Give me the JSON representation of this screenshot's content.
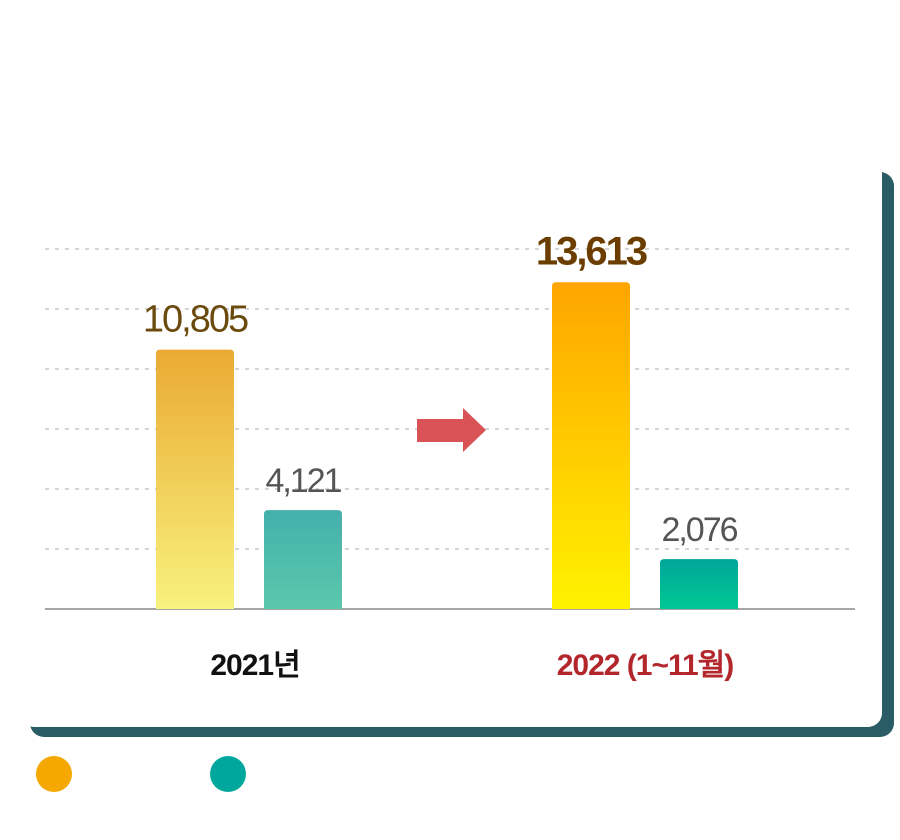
{
  "chart_data": {
    "type": "bar",
    "categories": [
      "2021년",
      "2022 (1~11월)"
    ],
    "series": [
      {
        "color": "#F5A800",
        "values": [
          10805,
          13613
        ]
      },
      {
        "color": "#00A79D",
        "values": [
          4121,
          2076
        ]
      }
    ],
    "value_labels": [
      [
        "10,805",
        "13,613"
      ],
      [
        "4,121",
        "2,076"
      ]
    ],
    "ylim": [
      0,
      15000
    ],
    "grid": true,
    "legend": "bottom-left"
  },
  "colors": {
    "category_2021": "#111111",
    "category_2022": "#B2262C",
    "label_orange_2021": "#6B4A0E",
    "label_orange_2022": "#6B3E00",
    "label_teal": "#555555",
    "arrow": "#D95255",
    "frame_shadow": "#2A5C66"
  }
}
